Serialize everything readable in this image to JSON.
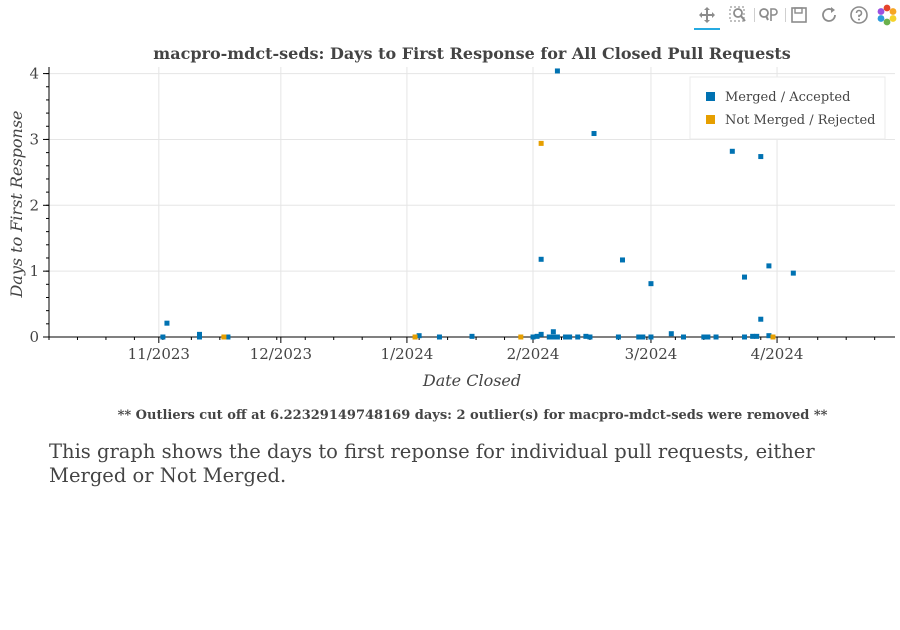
{
  "toolbar": {
    "tools": [
      {
        "name": "pan-tool",
        "icon": "move-icon",
        "active": true
      },
      {
        "name": "box-zoom-tool",
        "icon": "box-zoom-icon",
        "active": false
      },
      {
        "name": "wheel-zoom-tool",
        "icon": "wheel-zoom-icon",
        "active": false
      },
      {
        "name": "save-tool",
        "icon": "save-icon",
        "active": false
      },
      {
        "name": "reset-tool",
        "icon": "reset-icon",
        "active": false
      },
      {
        "name": "help-tool",
        "icon": "help-icon",
        "active": false
      },
      {
        "name": "bokeh-logo",
        "icon": "bokeh-logo-icon",
        "active": false
      }
    ]
  },
  "chart_data": {
    "type": "scatter",
    "title": "macpro-mdct-seds: Days to First Response for All Closed Pull Requests",
    "xlabel": "Date Closed",
    "ylabel": "Days to First Response",
    "x_type": "date",
    "xlim": [
      "2023-10-05",
      "2024-04-30"
    ],
    "ylim": [
      0,
      4.1
    ],
    "x_ticks": [
      {
        "date": "2023-11-01",
        "label": "11/2023"
      },
      {
        "date": "2023-12-01",
        "label": "12/2023"
      },
      {
        "date": "2024-01-01",
        "label": "1/2024"
      },
      {
        "date": "2024-02-01",
        "label": "2/2024"
      },
      {
        "date": "2024-03-01",
        "label": "3/2024"
      },
      {
        "date": "2024-04-01",
        "label": "4/2024"
      }
    ],
    "y_ticks": [
      0,
      1,
      2,
      3,
      4
    ],
    "grid": true,
    "legend_position": "top-right",
    "series": [
      {
        "name": "Merged / Accepted",
        "color": "#0072b2",
        "points": [
          {
            "x": "2023-11-02",
            "y": 0.0
          },
          {
            "x": "2023-11-03",
            "y": 0.21
          },
          {
            "x": "2023-11-11",
            "y": 0.04
          },
          {
            "x": "2023-11-11",
            "y": 0.0
          },
          {
            "x": "2023-11-18",
            "y": 0.0
          },
          {
            "x": "2024-01-04",
            "y": 0.02
          },
          {
            "x": "2024-01-09",
            "y": 0.0
          },
          {
            "x": "2024-01-17",
            "y": 0.01
          },
          {
            "x": "2024-02-01",
            "y": 0.0
          },
          {
            "x": "2024-02-02",
            "y": 0.01
          },
          {
            "x": "2024-02-03",
            "y": 0.04
          },
          {
            "x": "2024-02-03",
            "y": 1.18
          },
          {
            "x": "2024-02-05",
            "y": 0.0
          },
          {
            "x": "2024-02-06",
            "y": 0.08
          },
          {
            "x": "2024-02-06",
            "y": 0.0
          },
          {
            "x": "2024-02-07",
            "y": 0.0
          },
          {
            "x": "2024-02-07",
            "y": 4.04
          },
          {
            "x": "2024-02-09",
            "y": 0.0
          },
          {
            "x": "2024-02-10",
            "y": 0.0
          },
          {
            "x": "2024-02-12",
            "y": 0.0
          },
          {
            "x": "2024-02-14",
            "y": 0.01
          },
          {
            "x": "2024-02-15",
            "y": 0.0
          },
          {
            "x": "2024-02-16",
            "y": 3.09
          },
          {
            "x": "2024-02-22",
            "y": 0.0
          },
          {
            "x": "2024-02-23",
            "y": 1.17
          },
          {
            "x": "2024-02-27",
            "y": 0.0
          },
          {
            "x": "2024-02-28",
            "y": 0.0
          },
          {
            "x": "2024-03-01",
            "y": 0.0
          },
          {
            "x": "2024-03-01",
            "y": 0.81
          },
          {
            "x": "2024-03-06",
            "y": 0.05
          },
          {
            "x": "2024-03-09",
            "y": 0.0
          },
          {
            "x": "2024-03-14",
            "y": 0.0
          },
          {
            "x": "2024-03-15",
            "y": 0.0
          },
          {
            "x": "2024-03-17",
            "y": 0.0
          },
          {
            "x": "2024-03-21",
            "y": 2.82
          },
          {
            "x": "2024-03-24",
            "y": 0.91
          },
          {
            "x": "2024-03-24",
            "y": 0.0
          },
          {
            "x": "2024-03-26",
            "y": 0.01
          },
          {
            "x": "2024-03-27",
            "y": 0.01
          },
          {
            "x": "2024-03-28",
            "y": 2.74
          },
          {
            "x": "2024-03-28",
            "y": 0.27
          },
          {
            "x": "2024-03-30",
            "y": 1.08
          },
          {
            "x": "2024-03-30",
            "y": 0.02
          },
          {
            "x": "2024-04-05",
            "y": 0.97
          }
        ]
      },
      {
        "name": "Not Merged / Rejected",
        "color": "#e69f00",
        "points": [
          {
            "x": "2023-11-17",
            "y": 0.0
          },
          {
            "x": "2024-01-03",
            "y": 0.0
          },
          {
            "x": "2024-01-29",
            "y": 0.0
          },
          {
            "x": "2024-02-03",
            "y": 2.94
          },
          {
            "x": "2024-03-31",
            "y": 0.0
          }
        ]
      }
    ]
  },
  "footnote": "** Outliers cut off at 6.22329149748169 days: 2 outlier(s) for macpro-mdct-seds were removed **",
  "description": "This graph shows the days to first reponse for individual pull requests, either Merged or Not Merged."
}
